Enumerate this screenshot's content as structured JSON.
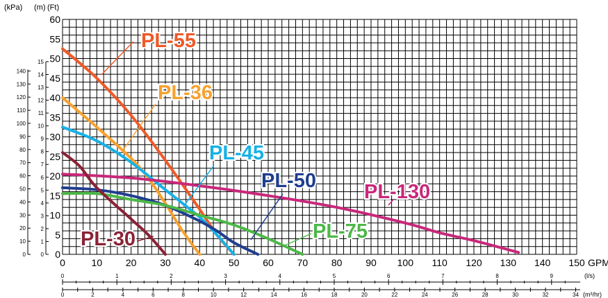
{
  "chart_data": {
    "type": "line",
    "title": "",
    "header_labels": {
      "kpa": "(kPa)",
      "m": "(m)",
      "ft": "(Ft)"
    },
    "xlabel": "GPM",
    "ylabel": "(Ft)",
    "xlim": [
      0,
      150
    ],
    "ylim": [
      0,
      60
    ],
    "grid": true,
    "legend": "labels on curves",
    "x_ticks": [
      "0",
      "10",
      "20",
      "30",
      "40",
      "50",
      "60",
      "70",
      "80",
      "90",
      "100",
      "110",
      "120",
      "130",
      "140",
      "150"
    ],
    "y_ticks_ft": [
      "0",
      "5",
      "10",
      "15",
      "20",
      "25",
      "30",
      "35",
      "40",
      "45",
      "50",
      "55",
      "60"
    ],
    "y_ticks_m": [
      "0",
      "1",
      "2",
      "3",
      "4",
      "5",
      "6",
      "7",
      "8",
      "9",
      "10",
      "11",
      "12",
      "13",
      "14",
      "15"
    ],
    "y_ticks_kpa": [
      "0",
      "10",
      "20",
      "30",
      "40",
      "50",
      "60",
      "70",
      "80",
      "90",
      "100",
      "110",
      "120",
      "130",
      "140"
    ],
    "secondary_axes": [
      {
        "unit": "(l/s)",
        "ticks": [
          "0",
          "1",
          "2",
          "3",
          "4",
          "5",
          "6",
          "7",
          "8",
          "9"
        ]
      },
      {
        "unit": "(m³/hr)",
        "ticks": [
          "0",
          "2",
          "4",
          "6",
          "8",
          "10",
          "12",
          "14",
          "16",
          "18",
          "20",
          "22",
          "24",
          "26",
          "28",
          "30",
          "32",
          "34"
        ]
      }
    ],
    "series": [
      {
        "name": "PL-55",
        "color": "#ef5a28",
        "x": [
          0,
          10,
          20,
          30,
          40,
          45,
          50
        ],
        "y": [
          52.5,
          45,
          35.5,
          24,
          11.5,
          5,
          0
        ]
      },
      {
        "name": "PL-36",
        "color": "#f7a12e",
        "x": [
          0,
          10,
          20,
          25,
          30,
          35,
          40
        ],
        "y": [
          40,
          32.5,
          24.5,
          19.5,
          13,
          6,
          0
        ]
      },
      {
        "name": "PL-45",
        "color": "#17b1e6",
        "x": [
          0,
          10,
          20,
          30,
          40,
          45,
          50
        ],
        "y": [
          32.5,
          29,
          23.5,
          16.5,
          9.5,
          5,
          0
        ]
      },
      {
        "name": "PL-50",
        "color": "#1f3e8f",
        "x": [
          0,
          10,
          20,
          30,
          40,
          45,
          50,
          57
        ],
        "y": [
          17,
          16.5,
          15,
          12.5,
          8.5,
          6,
          3,
          0
        ]
      },
      {
        "name": "PL-130",
        "color": "#c8287a",
        "x": [
          0,
          20,
          40,
          60,
          80,
          100,
          110,
          120,
          133
        ],
        "y": [
          20.5,
          19.5,
          17.5,
          15,
          12,
          8,
          5.5,
          3.5,
          0.5
        ]
      },
      {
        "name": "PL-75",
        "color": "#4db848",
        "x": [
          0,
          10,
          20,
          30,
          40,
          50,
          60,
          70
        ],
        "y": [
          15.5,
          15.5,
          14,
          12.5,
          10,
          7.5,
          4,
          0
        ]
      },
      {
        "name": "PL-30",
        "color": "#8b2236",
        "x": [
          0,
          5,
          10,
          20,
          25,
          30
        ],
        "y": [
          26,
          22.5,
          17,
          9,
          5,
          0
        ]
      }
    ]
  }
}
